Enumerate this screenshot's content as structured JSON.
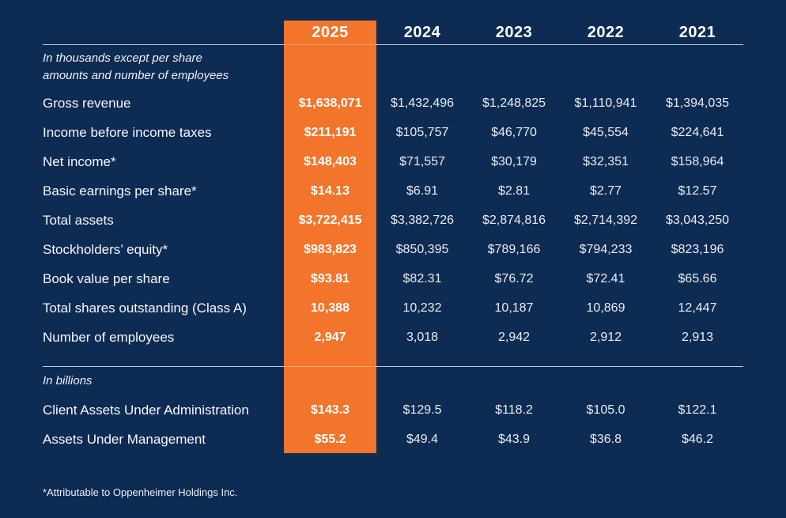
{
  "colors": {
    "background": "#0E2B53",
    "highlight": "#F2752B",
    "text": "#FFFFFF",
    "value_text": "#E8EDF3",
    "rule": "#C3CDDB"
  },
  "chart_data": {
    "type": "table",
    "years": [
      "2025",
      "2024",
      "2023",
      "2022",
      "2021"
    ],
    "highlight_year": "2025",
    "section1": {
      "note_line1": "In thousands except per share",
      "note_line2": "amounts and number of employees",
      "rows": [
        {
          "label": "Gross revenue",
          "values": [
            "$1,638,071",
            "$1,432,496",
            "$1,248,825",
            "$1,110,941",
            "$1,394,035"
          ]
        },
        {
          "label": "Income before income taxes",
          "values": [
            "$211,191",
            "$105,757",
            "$46,770",
            "$45,554",
            "$224,641"
          ]
        },
        {
          "label": "Net income*",
          "values": [
            "$148,403",
            "$71,557",
            "$30,179",
            "$32,351",
            "$158,964"
          ]
        },
        {
          "label": "Basic earnings per share*",
          "values": [
            "$14.13",
            "$6.91",
            "$2.81",
            "$2.77",
            "$12.57"
          ]
        },
        {
          "label": "Total assets",
          "values": [
            "$3,722,415",
            "$3,382,726",
            "$2,874,816",
            "$2,714,392",
            "$3,043,250"
          ]
        },
        {
          "label": "Stockholders’ equity*",
          "values": [
            "$983,823",
            "$850,395",
            "$789,166",
            "$794,233",
            "$823,196"
          ]
        },
        {
          "label": "Book value per share",
          "values": [
            "$93.81",
            "$82.31",
            "$76.72",
            "$72.41",
            "$65.66"
          ]
        },
        {
          "label": "Total shares outstanding (Class A)",
          "values": [
            "10,388",
            "10,232",
            "10,187",
            "10,869",
            "12,447"
          ]
        },
        {
          "label": "Number of employees",
          "values": [
            "2,947",
            "3,018",
            "2,942",
            "2,912",
            "2,913"
          ]
        }
      ]
    },
    "section2": {
      "note": "In billions",
      "rows": [
        {
          "label": "Client Assets Under Administration",
          "values": [
            "$143.3",
            "$129.5",
            "$118.2",
            "$105.0",
            "$122.1"
          ]
        },
        {
          "label": "Assets Under Management",
          "values": [
            "$55.2",
            "$49.4",
            "$43.9",
            "$36.8",
            "$46.2"
          ]
        }
      ]
    },
    "footnote": "*Attributable to Oppenheimer Holdings Inc."
  }
}
